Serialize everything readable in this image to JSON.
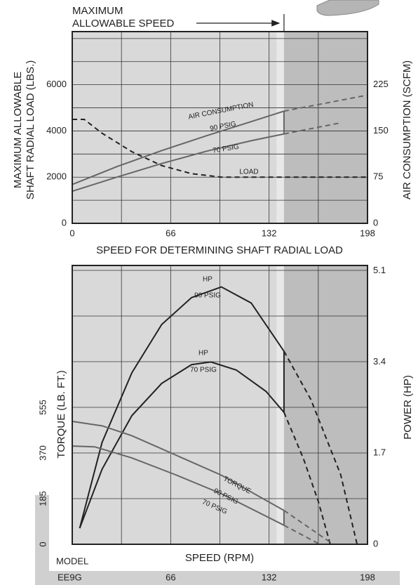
{
  "header": {
    "annotation": [
      "MAXIMUM",
      "ALLOWABLE SPEED"
    ]
  },
  "chart_data": [
    {
      "type": "line",
      "ylabel": [
        "MAXIMUM ALLOWABLE",
        "SHAFT RADIAL LOAD (LBS.)"
      ],
      "y2label": "AIR CONSUMPTION (SCFM)",
      "xlabel": "SPEED FOR DETERMINING SHAFT RADIAL LOAD",
      "labels": [
        "AIR CONSUMPTION",
        "90 PSIG",
        "70 PSIG",
        "LOAD"
      ],
      "xlim": [
        0,
        198
      ],
      "xticks": [
        0,
        66,
        132,
        198
      ],
      "xgrid": [
        33,
        66,
        99,
        132,
        165
      ],
      "ylim": [
        0,
        8300
      ],
      "yticks": [
        0,
        2000,
        4000,
        6000
      ],
      "ygrid": [
        1000,
        2000,
        3000,
        4000,
        5000,
        6000,
        7000,
        8000
      ],
      "y2lim": [
        0,
        311
      ],
      "y2ticks": [
        0,
        75,
        150,
        225
      ],
      "max_speed": 142,
      "bands": [
        {
          "from": 137,
          "to": 142,
          "color": "#e8e8e8"
        },
        {
          "from": 142,
          "to": 198,
          "color": "#bdbdbd"
        }
      ],
      "background": "#d9d9d9",
      "series": [
        {
          "x": [
            0,
            30,
            60,
            90,
            120,
            142
          ],
          "values": [
            63,
            92,
            118,
            142,
            165,
            182
          ],
          "color": "#666666",
          "dash": false,
          "axis": "y2"
        },
        {
          "x": [
            142,
            198
          ],
          "values": [
            182,
            208
          ],
          "color": "#666666",
          "dash": true,
          "axis": "y2"
        },
        {
          "x": [
            0,
            30,
            60,
            90,
            120,
            142
          ],
          "values": [
            52,
            75,
            97,
            117,
            134,
            145
          ],
          "color": "#666666",
          "dash": false,
          "axis": "y2"
        },
        {
          "x": [
            142,
            180
          ],
          "values": [
            145,
            163
          ],
          "color": "#666666",
          "dash": true,
          "axis": "y2"
        },
        {
          "x": [
            0,
            8,
            20,
            40,
            60,
            80,
            100,
            120,
            198
          ],
          "values": [
            4500,
            4500,
            3900,
            3100,
            2500,
            2150,
            2000,
            2000,
            2000
          ],
          "color": "#222222",
          "dash": true
        }
      ]
    },
    {
      "type": "line",
      "ylabel": "TORQUE (LB. FT.)",
      "y2label": "POWER (HP)",
      "xlabel": "SPEED (RPM)",
      "model_label": "MODEL",
      "model": "EE9G",
      "labels": [
        "HP",
        "90 PSIG",
        "HP",
        "70 PSIG",
        "TORQUE",
        "90 PSIG",
        "70 PSIG"
      ],
      "xlim": [
        0,
        198
      ],
      "xticks": [
        66,
        132,
        198
      ],
      "xgrid": [
        33,
        66,
        99,
        132,
        165
      ],
      "ylim": [
        0,
        1130
      ],
      "yticks": [
        0,
        185,
        370,
        555
      ],
      "ygrid": [
        185,
        370,
        555,
        740,
        925,
        1110
      ],
      "y2lim": [
        0,
        5.2
      ],
      "y2ticks": [
        0,
        1.7,
        3.4,
        5.1
      ],
      "max_speed": 142,
      "bands": [
        {
          "from": 137,
          "to": 142,
          "color": "#e8e8e8"
        },
        {
          "from": 142,
          "to": 198,
          "color": "#bdbdbd"
        }
      ],
      "background": "#d9d9d9",
      "series": [
        {
          "x": [
            5,
            20,
            40,
            60,
            80,
            100,
            120,
            142
          ],
          "values": [
            0.3,
            1.9,
            3.2,
            4.1,
            4.6,
            4.8,
            4.5,
            3.6
          ],
          "color": "#222222",
          "dash": false,
          "axis": "y2"
        },
        {
          "x": [
            142,
            160,
            180,
            191
          ],
          "values": [
            3.6,
            2.7,
            1.3,
            0
          ],
          "color": "#222222",
          "dash": true,
          "axis": "y2"
        },
        {
          "x": [
            5,
            20,
            40,
            60,
            80,
            93,
            110,
            130,
            142
          ],
          "values": [
            0.3,
            1.4,
            2.4,
            3.0,
            3.35,
            3.4,
            3.25,
            2.85,
            2.46
          ],
          "color": "#222222",
          "dash": false,
          "axis": "y2"
        },
        {
          "x": [
            142,
            155,
            165,
            173
          ],
          "values": [
            2.46,
            1.6,
            0.8,
            0
          ],
          "color": "#222222",
          "dash": true,
          "axis": "y2"
        },
        {
          "x": [
            0,
            20,
            40,
            70,
            100,
            142
          ],
          "values": [
            498,
            480,
            440,
            360,
            280,
            137
          ],
          "color": "#666666",
          "dash": false
        },
        {
          "x": [
            142,
            175
          ],
          "values": [
            137,
            0
          ],
          "color": "#666666",
          "dash": true
        },
        {
          "x": [
            0,
            15,
            40,
            70,
            100,
            142
          ],
          "values": [
            398,
            395,
            350,
            280,
            205,
            77
          ],
          "color": "#666666",
          "dash": false
        },
        {
          "x": [
            142,
            166
          ],
          "values": [
            77,
            0
          ],
          "color": "#666666",
          "dash": true
        }
      ]
    }
  ]
}
